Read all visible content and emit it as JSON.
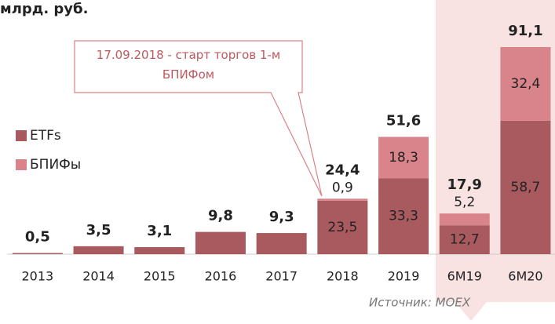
{
  "chart_data": {
    "type": "stacked_bar",
    "title": "млрд. руб.",
    "annotation": "17.09.2018 - старт торгов 1-м БПИФом",
    "source": "Источник: MOEX",
    "categories": [
      "2013",
      "2014",
      "2015",
      "2016",
      "2017",
      "2018",
      "2019",
      "6M19",
      "6M20"
    ],
    "series": [
      {
        "name": "ETFs",
        "color": "#a85a5f",
        "values": [
          0.5,
          3.5,
          3.1,
          9.8,
          9.3,
          23.5,
          33.3,
          12.7,
          58.7
        ],
        "value_labels": [
          null,
          null,
          null,
          null,
          null,
          "23,5",
          "33,3",
          "12,7",
          "58,7"
        ]
      },
      {
        "name": "БПИФы",
        "color": "#d9838a",
        "values": [
          null,
          null,
          null,
          null,
          null,
          0.9,
          18.3,
          5.2,
          32.4
        ],
        "value_labels": [
          null,
          null,
          null,
          null,
          null,
          "0,9",
          "18,3",
          "5,2",
          "32,4"
        ]
      }
    ],
    "totals": {
      "values": [
        0.5,
        3.5,
        3.1,
        9.8,
        9.3,
        24.4,
        51.6,
        17.9,
        91.1
      ],
      "value_labels": [
        "0,5",
        "3,5",
        "3,1",
        "9,8",
        "9,3",
        "24,4",
        "51,6",
        "17,9",
        "91,1"
      ]
    }
  }
}
